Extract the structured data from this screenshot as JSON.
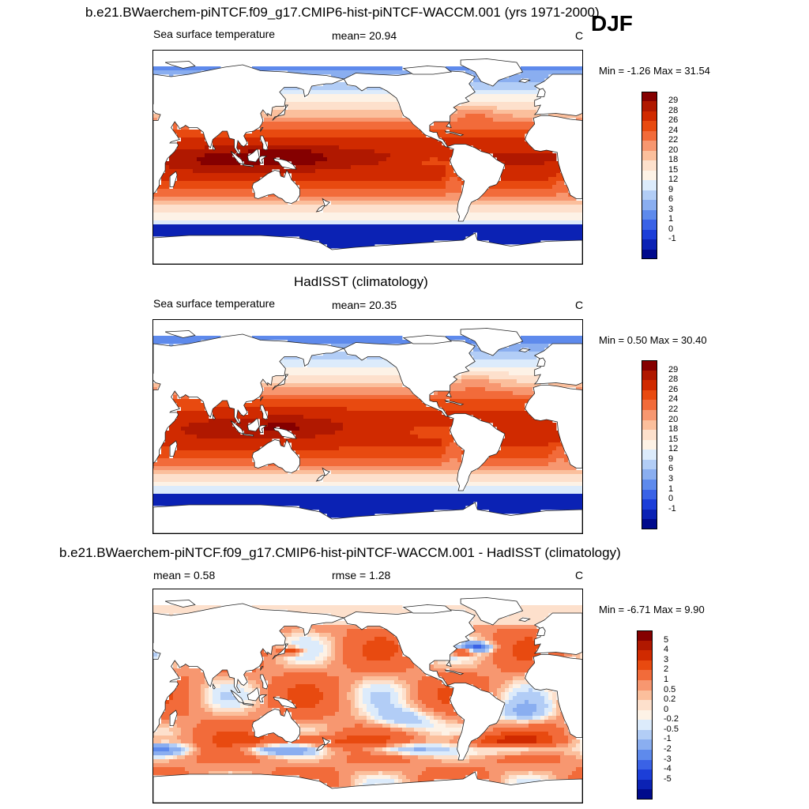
{
  "season": "DJF",
  "chart_data": [
    {
      "type": "heatmap",
      "title": "b.e21.BWaerchem-piNTCF.f09_g17.CMIP6-hist-piNTCF-WACCM.001 (yrs 1971-2000)",
      "left_label": "Sea surface temperature",
      "center_label": "mean=  20.94",
      "units": "C",
      "minmax": "Min =  -1.26 Max =  31.54",
      "levels": [
        "29",
        "28",
        "26",
        "24",
        "22",
        "20",
        "18",
        "15",
        "12",
        "9",
        "6",
        "3",
        "1",
        "0",
        "-1"
      ],
      "colors": [
        "#850000",
        "#b01800",
        "#d02a00",
        "#e84a10",
        "#f26b3a",
        "#f79770",
        "#fbbf9c",
        "#fde0cc",
        "#fdf2e6",
        "#dcebfb",
        "#b2cdf6",
        "#8aaef0",
        "#5e8aec",
        "#3a62e6",
        "#1c3ed8",
        "#0b22b4",
        "#000a8c"
      ],
      "mode": "sst",
      "bias": 1.0
    },
    {
      "type": "heatmap",
      "title": "HadISST (climatology)",
      "left_label": "Sea surface temperature",
      "center_label": "mean=  20.35",
      "units": "C",
      "minmax": "Min =   0.50 Max =  30.40",
      "levels": [
        "29",
        "28",
        "26",
        "24",
        "22",
        "20",
        "18",
        "15",
        "12",
        "9",
        "6",
        "3",
        "1",
        "0",
        "-1"
      ],
      "colors": [
        "#850000",
        "#b01800",
        "#d02a00",
        "#e84a10",
        "#f26b3a",
        "#f79770",
        "#fbbf9c",
        "#fde0cc",
        "#fdf2e6",
        "#dcebfb",
        "#b2cdf6",
        "#8aaef0",
        "#5e8aec",
        "#3a62e6",
        "#1c3ed8",
        "#0b22b4",
        "#000a8c"
      ],
      "mode": "sst",
      "bias": 0.0
    },
    {
      "type": "heatmap",
      "title": "b.e21.BWaerchem-piNTCF.f09_g17.CMIP6-hist-piNTCF-WACCM.001 - HadISST (climatology)",
      "left_label": "mean =   0.58",
      "center_label": "rmse =   1.28",
      "units": "C",
      "minmax": "Min =  -6.71 Max =   9.90",
      "levels": [
        "5",
        "4",
        "3",
        "2",
        "1",
        "0.5",
        "0.2",
        "0",
        "-0.2",
        "-0.5",
        "-1",
        "-2",
        "-3",
        "-4",
        "-5"
      ],
      "colors": [
        "#850000",
        "#b01800",
        "#d02a00",
        "#e84a10",
        "#f26b3a",
        "#f79770",
        "#fbbf9c",
        "#fde0cc",
        "#fdf2e6",
        "#dcebfb",
        "#b2cdf6",
        "#8aaef0",
        "#5e8aec",
        "#3a62e6",
        "#1c3ed8",
        "#0b22b4",
        "#000a8c"
      ],
      "mode": "diff",
      "bias": 0.0
    }
  ]
}
